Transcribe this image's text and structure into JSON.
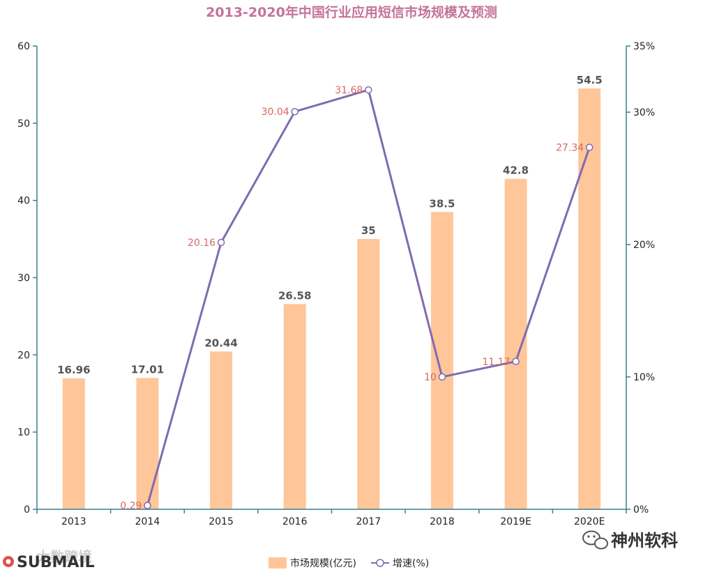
{
  "chart_data": {
    "type": "bar",
    "title": "2013-2020年中国行业应用短信市场规模及预测",
    "categories": [
      "2013",
      "2014",
      "2015",
      "2016",
      "2017",
      "2018",
      "2019E",
      "2020E"
    ],
    "series": [
      {
        "name": "市场规模(亿元)",
        "type": "bar",
        "axis": "left",
        "values": [
          16.96,
          17.01,
          20.44,
          26.58,
          35,
          38.5,
          42.8,
          54.5
        ],
        "labels": [
          "16.96",
          "17.01",
          "20.44",
          "26.58",
          "35",
          "38.5",
          "42.8",
          "54.5"
        ]
      },
      {
        "name": "增速(%)",
        "type": "line",
        "axis": "right",
        "values": [
          null,
          0.29,
          20.16,
          30.04,
          31.68,
          10,
          11.17,
          27.34
        ],
        "labels": [
          "",
          "0.29",
          "20.16",
          "30.04",
          "31.68",
          "10",
          "11.17",
          "27.34"
        ]
      }
    ],
    "y_left": {
      "min": 0,
      "max": 60,
      "ticks": [
        0,
        10,
        20,
        30,
        40,
        50,
        60
      ],
      "tick_labels": [
        "0",
        "10",
        "20",
        "30",
        "40",
        "50",
        "60"
      ]
    },
    "y_right": {
      "min": 0,
      "max": 35,
      "ticks": [
        0,
        10,
        20,
        30,
        35
      ],
      "tick_labels": [
        "0%",
        "10%",
        "20%",
        "30%",
        "35%"
      ]
    },
    "grid": false,
    "legend_position": "bottom-center"
  },
  "colors": {
    "bar": "#ffc699",
    "line": "#7f6bb0",
    "line_label": "#d9685f",
    "axis": "#3b7f8f",
    "title": "#c4739a"
  },
  "watermarks": {
    "left": "SUBMAIL",
    "left_faint": "大数跨境",
    "right": "神州软科"
  }
}
